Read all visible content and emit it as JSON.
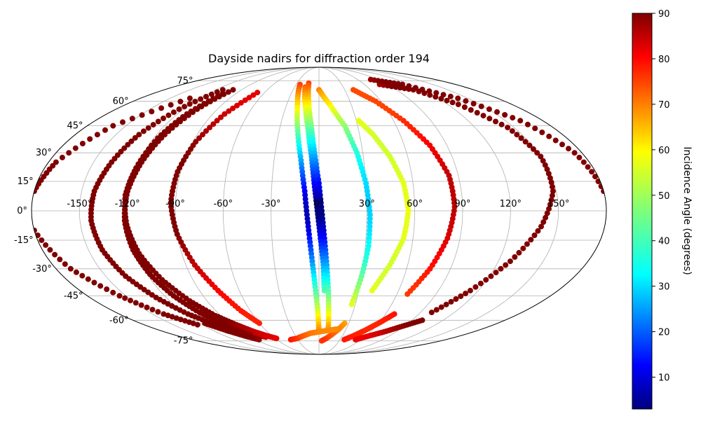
{
  "chart_data": {
    "type": "scatter",
    "title": "Dayside nadirs for diffraction order 194",
    "projection": "mollweide",
    "grid": true,
    "lon_tick_labels": [
      "-150°",
      "-120°",
      "-90°",
      "-60°",
      "-30°",
      "0°",
      "30°",
      "60°",
      "90°",
      "120°",
      "150°"
    ],
    "lon_ticks": [
      -150,
      -120,
      -90,
      -60,
      -30,
      0,
      30,
      60,
      90,
      120,
      150
    ],
    "lat_tick_labels": [
      "-75°",
      "-60°",
      "-45°",
      "-30°",
      "-15°",
      "0°",
      "15°",
      "30°",
      "45°",
      "60°",
      "75°"
    ],
    "lat_ticks": [
      -75,
      -60,
      -45,
      -30,
      -15,
      0,
      15,
      30,
      45,
      60,
      75
    ],
    "colorbar": {
      "label": "Incidence Angle (degrees)",
      "colormap": "jet",
      "range": [
        3,
        90
      ],
      "tick_labels": [
        "10",
        "20",
        "30",
        "40",
        "50",
        "60",
        "70",
        "80",
        "90"
      ],
      "ticks": [
        10,
        20,
        30,
        40,
        50,
        60,
        70,
        80,
        90
      ]
    },
    "tracks": [
      {
        "lon": [
          -100,
          -108,
          -114,
          -118,
          -121,
          -122,
          -121,
          -118,
          -113,
          -106,
          -97,
          -88,
          -78,
          -70
        ],
        "lat": [
          68,
          55,
          40,
          25,
          10,
          -5,
          -20,
          -33,
          -45,
          -55,
          -62,
          -67,
          -70,
          -72
        ]
      },
      {
        "lon": [
          -104,
          -112,
          -117,
          -120,
          -122,
          -121,
          -118,
          -112,
          -104,
          -95,
          -85,
          -75,
          -66,
          -58
        ],
        "lat": [
          65,
          52,
          38,
          22,
          8,
          -7,
          -22,
          -36,
          -48,
          -57,
          -63,
          -68,
          -71,
          -73
        ]
      },
      {
        "lon": [
          -112,
          -124,
          -133,
          -138,
          -142,
          -143,
          -141,
          -136,
          -128,
          -118,
          -106,
          -95,
          -85
        ],
        "lat": [
          68,
          55,
          40,
          25,
          10,
          -5,
          -20,
          -34,
          -46,
          -56,
          -63,
          -68,
          -70
        ]
      },
      {
        "lon": [
          -130,
          -160,
          -175,
          -180
        ],
        "lat": [
          62,
          45,
          25,
          10
        ]
      },
      {
        "lon": [
          -180,
          -170,
          -155,
          -140,
          -125
        ],
        "lat": [
          -10,
          -30,
          -45,
          -56,
          -63
        ]
      },
      {
        "lon": [
          -115,
          -105,
          -95,
          -85
        ],
        "lat": [
          -62,
          -67,
          -71,
          -74
        ]
      },
      {
        "lon": [
          -68,
          -80,
          -88,
          -92,
          -93,
          -90,
          -84,
          -76,
          -68,
          -60
        ],
        "lat": [
          66,
          52,
          36,
          20,
          4,
          -12,
          -28,
          -42,
          -54,
          -62
        ]
      },
      {
        "lon": [
          -25,
          -20,
          -16,
          -12,
          -9,
          -7,
          -5,
          -3,
          -1,
          0
        ],
        "lat": [
          72,
          58,
          42,
          26,
          10,
          -6,
          -22,
          -38,
          -54,
          -68
        ]
      },
      {
        "lon": [
          -14,
          -10,
          -6,
          -3,
          0,
          2,
          4,
          6,
          8,
          10
        ],
        "lat": [
          73,
          60,
          45,
          30,
          14,
          -2,
          -18,
          -34,
          -50,
          -65
        ]
      },
      {
        "lon": [
          -17,
          -12,
          -8,
          -5,
          -3,
          -1,
          1,
          3,
          4
        ],
        "lat": [
          70,
          56,
          42,
          28,
          14,
          0,
          -14,
          -28,
          -42
        ]
      },
      {
        "lon": [
          0,
          10,
          20,
          26,
          30,
          32,
          32,
          30,
          27
        ],
        "lat": [
          68,
          58,
          45,
          30,
          14,
          -2,
          -18,
          -34,
          -50
        ]
      },
      {
        "lon": [
          32,
          40,
          48,
          54,
          56,
          54,
          48,
          40
        ],
        "lat": [
          48,
          40,
          28,
          14,
          0,
          -14,
          -28,
          -42
        ]
      },
      {
        "lon": [
          26,
          22,
          16,
          10,
          4
        ],
        "lat": [
          -62,
          -66,
          -70,
          -73,
          -75
        ]
      },
      {
        "lon": [
          40,
          55,
          68,
          78,
          84,
          85,
          82,
          76,
          68
        ],
        "lat": [
          68,
          60,
          48,
          34,
          18,
          2,
          -14,
          -30,
          -44
        ]
      },
      {
        "lon": [
          68,
          60,
          52,
          44,
          36
        ],
        "lat": [
          -56,
          -62,
          -67,
          -71,
          -74
        ]
      },
      {
        "lon": [
          80,
          110,
          130,
          145,
          150,
          148,
          140,
          128,
          114,
          100
        ],
        "lat": [
          72,
          68,
          58,
          44,
          28,
          10,
          -8,
          -26,
          -42,
          -55
        ]
      },
      {
        "lon": [
          80,
          110,
          140,
          162,
          175,
          180
        ],
        "lat": [
          76,
          72,
          62,
          48,
          30,
          10
        ]
      },
      {
        "lon": [
          100,
          88,
          76,
          64,
          52
        ],
        "lat": [
          -60,
          -64,
          -68,
          -71,
          -74
        ]
      },
      {
        "lon": [
          -40,
          -30,
          -20,
          -10,
          0,
          10,
          20
        ],
        "lat": [
          -74,
          -73,
          -71,
          -69,
          -68,
          -67,
          -66
        ]
      }
    ]
  }
}
